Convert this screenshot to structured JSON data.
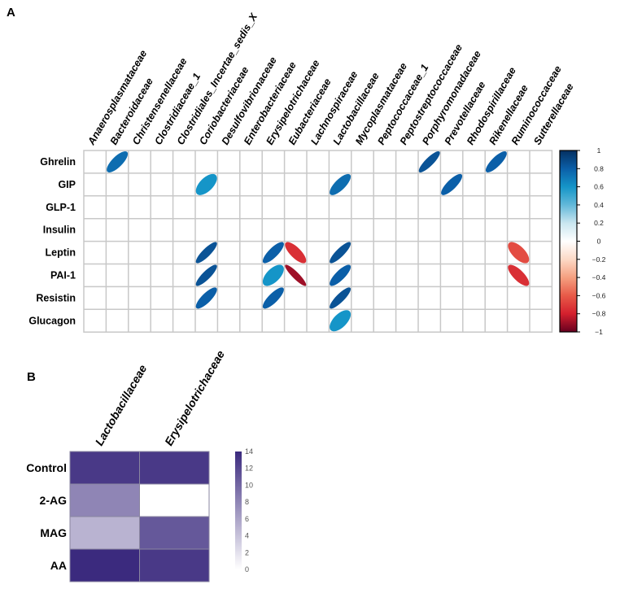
{
  "chart_data": [
    {
      "type": "heatmap",
      "panel_label": "A",
      "subtype": "correlation-ellipse",
      "columns": [
        "Anaerosplasmataceae",
        "Bacteroidaceae",
        "Christensenellaceae",
        "Clostridiaceae_1",
        "Clostridiales_Incertae_sedis_X",
        "Coriobacteriaceae",
        "Desulfovibrionaceae",
        "Enterobacteriaceae",
        "Erysipelotrichaceae",
        "Eubacteriaceae",
        "Lachnospiraceae",
        "Lactobacillaceae",
        "Mycoplasmataceae",
        "Peptococcaceae_1",
        "Peptostreptococcaceae",
        "Porphyromonadaceae",
        "Prevotellaceae",
        "Rhodospirillaceae",
        "Rikenellaceae",
        "Ruminococcaceae",
        "Sutterellaceae"
      ],
      "rows": [
        "Ghrelin",
        "GIP",
        "GLP-1",
        "Insulin",
        "Leptin",
        "PAI-1",
        "Resistin",
        "Glucagon"
      ],
      "values": [
        {
          "row": "Ghrelin",
          "col": "Bacteroidaceae",
          "r": 0.75
        },
        {
          "row": "Ghrelin",
          "col": "Porphyromonadaceae",
          "r": 0.85
        },
        {
          "row": "Ghrelin",
          "col": "Rikenellaceae",
          "r": 0.8
        },
        {
          "row": "GIP",
          "col": "Coriobacteriaceae",
          "r": 0.6
        },
        {
          "row": "GIP",
          "col": "Lactobacillaceae",
          "r": 0.75
        },
        {
          "row": "GIP",
          "col": "Prevotellaceae",
          "r": 0.8
        },
        {
          "row": "Leptin",
          "col": "Coriobacteriaceae",
          "r": 0.85
        },
        {
          "row": "Leptin",
          "col": "Erysipelotrichaceae",
          "r": 0.8
        },
        {
          "row": "Leptin",
          "col": "Eubacteriaceae",
          "r": -0.75
        },
        {
          "row": "Leptin",
          "col": "Lactobacillaceae",
          "r": 0.85
        },
        {
          "row": "Leptin",
          "col": "Ruminococcaceae",
          "r": -0.65
        },
        {
          "row": "PAI-1",
          "col": "Coriobacteriaceae",
          "r": 0.85
        },
        {
          "row": "PAI-1",
          "col": "Erysipelotrichaceae",
          "r": 0.6
        },
        {
          "row": "PAI-1",
          "col": "Eubacteriaceae",
          "r": -0.9
        },
        {
          "row": "PAI-1",
          "col": "Lactobacillaceae",
          "r": 0.8
        },
        {
          "row": "PAI-1",
          "col": "Ruminococcaceae",
          "r": -0.75
        },
        {
          "row": "Resistin",
          "col": "Coriobacteriaceae",
          "r": 0.8
        },
        {
          "row": "Resistin",
          "col": "Erysipelotrichaceae",
          "r": 0.8
        },
        {
          "row": "Resistin",
          "col": "Lactobacillaceae",
          "r": 0.85
        },
        {
          "row": "Glucagon",
          "col": "Lactobacillaceae",
          "r": 0.6
        }
      ],
      "colorbar": {
        "range": [
          -1,
          1
        ],
        "ticks": [
          "1",
          "0.8",
          "0.6",
          "0.4",
          "0.2",
          "0",
          "−0.2",
          "−0.4",
          "−0.6",
          "−0.8",
          "−1"
        ],
        "palette": "red-white-blue"
      },
      "grid": true
    },
    {
      "type": "heatmap",
      "panel_label": "B",
      "columns": [
        "Lactobacillaceae",
        "Erysipelotrichaceae"
      ],
      "rows": [
        "Control",
        "2-AG",
        "MAG",
        "AA"
      ],
      "values": [
        [
          13,
          13
        ],
        [
          8,
          0
        ],
        [
          5,
          11
        ],
        [
          14,
          13
        ]
      ],
      "colorbar": {
        "range": [
          0,
          14
        ],
        "ticks": [
          "14",
          "12",
          "10",
          "8",
          "6",
          "4",
          "2",
          "0"
        ],
        "low_color": "#ffffff",
        "high_color": "#3b2a7e"
      }
    }
  ]
}
